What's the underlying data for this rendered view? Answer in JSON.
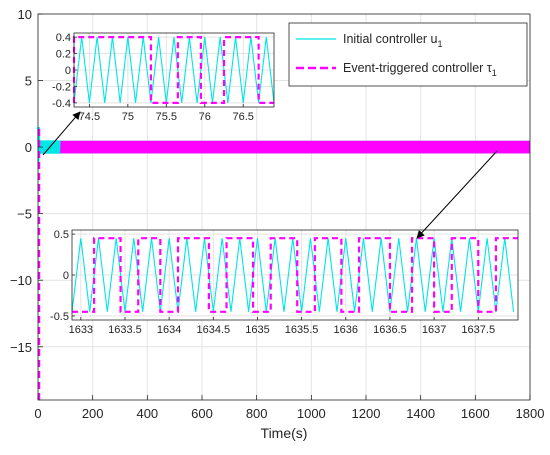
{
  "chart_data": {
    "type": "line",
    "xlabel": "Time(s)",
    "ylabel": "",
    "xlim": [
      0,
      1800
    ],
    "ylim": [
      -19,
      10
    ],
    "xticks": [
      "0",
      "200",
      "400",
      "600",
      "800",
      "1000",
      "1200",
      "1400",
      "1600",
      "1800"
    ],
    "yticks": [
      "10",
      "5",
      "0",
      "−5",
      "−10",
      "−15"
    ],
    "grid": true,
    "legend_position": "top-right",
    "series": [
      {
        "name": "Initial controller u",
        "name_sub": "1",
        "color": "#00e5e5",
        "style": "solid",
        "amplitude": 0.4,
        "period_s": 0.2
      },
      {
        "name": "Event-triggered controller τ",
        "name_sub": "1",
        "color": "#ff00ff",
        "style": "dashed",
        "amplitude": 0.4,
        "initial_value": -19
      }
    ],
    "insets": [
      {
        "id": "inset-top",
        "xlim": [
          74.3,
          76.9
        ],
        "ylim": [
          -0.45,
          0.45
        ],
        "xticks": [
          "74.5",
          "75",
          "75.5",
          "76",
          "76.5"
        ],
        "yticks": [
          "0.4",
          "0.2",
          "0",
          "-0.2",
          "-0.4"
        ],
        "cyan_period": 0.2,
        "amplitude": 0.4,
        "event_switch_times": [
          74.3,
          75.3,
          75.65,
          75.95,
          76.25,
          76.7
        ]
      },
      {
        "id": "inset-bottom",
        "xlim": [
          1632.9,
          1637.95
        ],
        "ylim": [
          -0.55,
          0.55
        ],
        "xticks": [
          "1633",
          "1633.5",
          "1634",
          "1634.5",
          "1635",
          "1635.5",
          "1636",
          "1636.5",
          "1637",
          "1637.5"
        ],
        "yticks": [
          "0.5",
          "0",
          "-0.5"
        ],
        "cyan_period": 0.2,
        "amplitude": 0.45,
        "event_switch_times": [
          1633.15,
          1633.45,
          1633.65,
          1633.9,
          1634.1,
          1634.45,
          1634.65,
          1634.95,
          1635.15,
          1635.45,
          1635.65,
          1635.95,
          1636.15,
          1636.5,
          1636.75,
          1637.0,
          1637.2,
          1637.5,
          1637.7
        ]
      }
    ]
  }
}
